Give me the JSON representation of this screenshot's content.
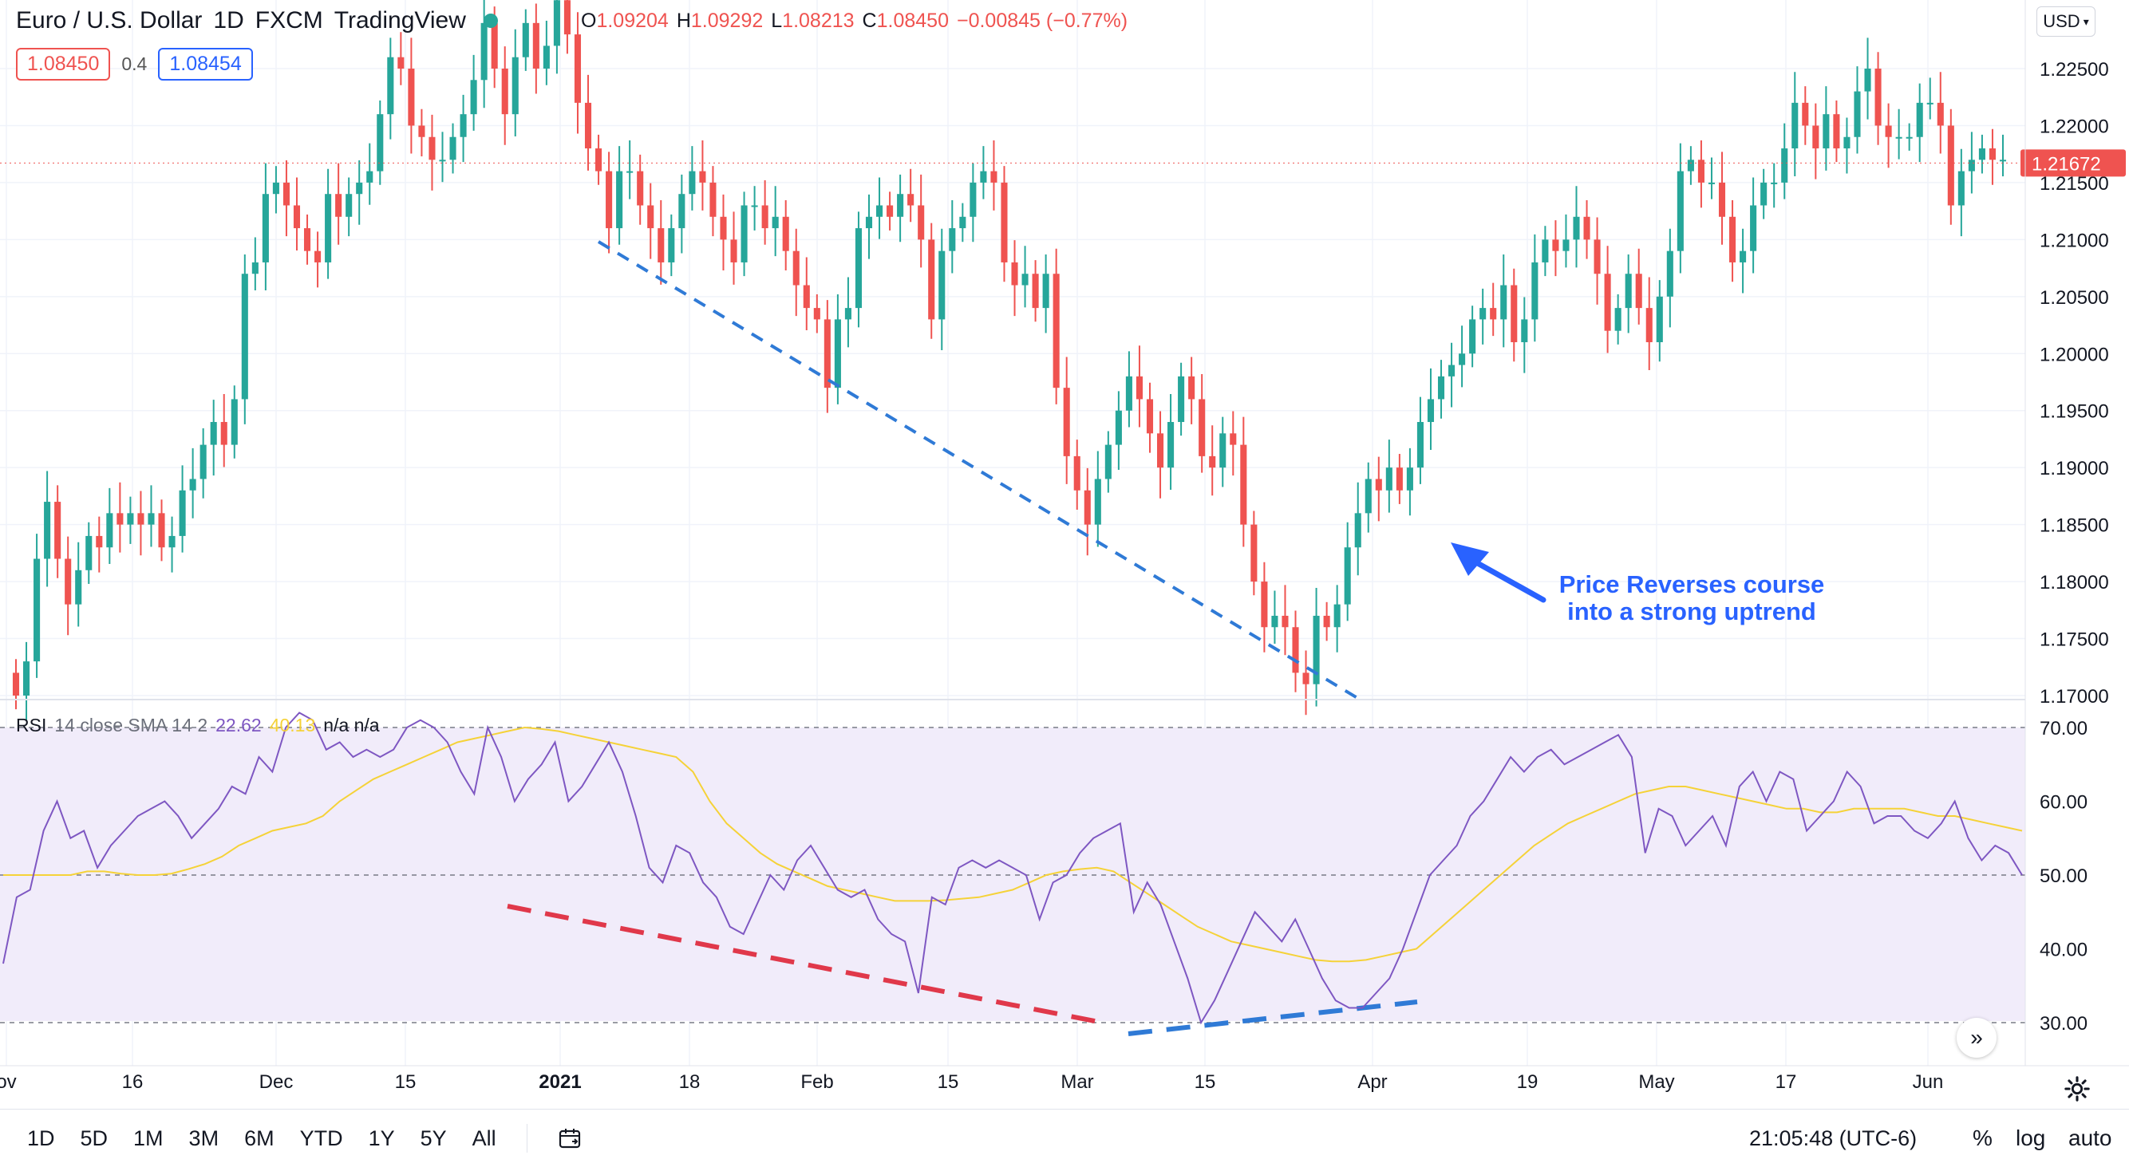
{
  "header": {
    "symbol": "Euro / U.S. Dollar",
    "interval": "1D",
    "exchange": "FXCM",
    "brand": "TradingView",
    "ohlc": {
      "open_label": "O",
      "open": "1.09204",
      "high_label": "H",
      "high": "1.09292",
      "low_label": "L",
      "low": "1.08213",
      "close_label": "C",
      "close": "1.08450",
      "change": "−0.00845 (−0.77%)"
    },
    "sell_price": "1.08450",
    "spread": "0.4",
    "buy_price": "1.08454",
    "currency": "USD"
  },
  "rsi_legend": {
    "name": "RSI",
    "params": "14 close SMA 14 2",
    "rsi_value": "22.62",
    "ma_value": "40.13",
    "extra": "n/a n/a"
  },
  "annotation": {
    "line1": "Price Reverses course",
    "line2": "into a strong uptrend"
  },
  "bottom_bar": {
    "timeframes": [
      "1D",
      "5D",
      "1M",
      "3M",
      "6M",
      "YTD",
      "1Y",
      "5Y",
      "All"
    ],
    "clock": "21:05:48 (UTC-6)",
    "percent_label": "%",
    "log_label": "log",
    "auto_label": "auto"
  },
  "colors": {
    "up": "#26a69a",
    "down": "#ef5350",
    "rsi_line": "#7e57c2",
    "rsi_ma": "#f5d238",
    "trend_blue": "#2f7ad6",
    "div_red": "#e0384a",
    "annotation": "#2962ff",
    "rsi_band": "#f1ecfa"
  },
  "chart_data": [
    {
      "type": "candlestick",
      "title": "Euro / U.S. Dollar · 1D · FXCM",
      "x_ticks": [
        "ov",
        "16",
        "Dec",
        "15",
        "2021",
        "18",
        "Feb",
        "15",
        "Mar",
        "15",
        "Apr",
        "19",
        "May",
        "17",
        "Jun"
      ],
      "ylim": [
        1.17,
        1.228
      ],
      "y_ticks": [
        "1.17000",
        "1.17500",
        "1.18000",
        "1.18500",
        "1.19000",
        "1.19500",
        "1.20000",
        "1.20500",
        "1.21000",
        "1.21500",
        "1.22000",
        "1.22500"
      ],
      "last_price_label": "1.21672",
      "last_price": 1.21672,
      "closes": [
        1.17,
        1.173,
        1.182,
        1.187,
        1.182,
        1.178,
        1.181,
        1.184,
        1.183,
        1.186,
        1.185,
        1.186,
        1.185,
        1.186,
        1.183,
        1.184,
        1.188,
        1.189,
        1.192,
        1.194,
        1.192,
        1.196,
        1.207,
        1.208,
        1.214,
        1.215,
        1.213,
        1.211,
        1.209,
        1.208,
        1.214,
        1.212,
        1.214,
        1.215,
        1.216,
        1.221,
        1.226,
        1.225,
        1.22,
        1.219,
        1.217,
        1.217,
        1.219,
        1.221,
        1.224,
        1.229,
        1.225,
        1.221,
        1.226,
        1.229,
        1.225,
        1.227,
        1.231,
        1.228,
        1.222,
        1.218,
        1.216,
        1.211,
        1.216,
        1.216,
        1.213,
        1.211,
        1.208,
        1.211,
        1.214,
        1.216,
        1.215,
        1.212,
        1.21,
        1.208,
        1.213,
        1.213,
        1.211,
        1.212,
        1.209,
        1.206,
        1.204,
        1.203,
        1.197,
        1.203,
        1.204,
        1.211,
        1.212,
        1.213,
        1.212,
        1.214,
        1.213,
        1.21,
        1.203,
        1.209,
        1.211,
        1.212,
        1.215,
        1.216,
        1.215,
        1.208,
        1.206,
        1.207,
        1.204,
        1.207,
        1.197,
        1.191,
        1.188,
        1.185,
        1.189,
        1.192,
        1.195,
        1.198,
        1.196,
        1.193,
        1.19,
        1.194,
        1.198,
        1.196,
        1.191,
        1.19,
        1.193,
        1.192,
        1.185,
        1.18,
        1.176,
        1.177,
        1.176,
        1.172,
        1.171,
        1.177,
        1.176,
        1.178,
        1.183,
        1.186,
        1.189,
        1.188,
        1.19,
        1.188,
        1.19,
        1.194,
        1.196,
        1.198,
        1.199,
        1.2,
        1.203,
        1.204,
        1.203,
        1.206,
        1.201,
        1.203,
        1.208,
        1.21,
        1.209,
        1.21,
        1.212,
        1.21,
        1.207,
        1.202,
        1.204,
        1.207,
        1.204,
        1.201,
        1.205,
        1.209,
        1.216,
        1.217,
        1.215,
        1.215,
        1.212,
        1.208,
        1.209,
        1.213,
        1.215,
        1.215,
        1.218,
        1.222,
        1.22,
        1.218,
        1.221,
        1.218,
        1.219,
        1.223,
        1.225,
        1.22,
        1.219,
        1.219,
        1.219,
        1.222,
        1.222,
        1.22,
        1.213,
        1.216,
        1.217,
        1.218,
        1.217,
        1.217
      ],
      "trendline": {
        "from": [
          "Jan 7",
          1.21
        ],
        "to": [
          "Mar 31",
          1.17
        ],
        "style": "dashed"
      }
    },
    {
      "type": "line",
      "title": "RSI 14 close SMA 14 2",
      "ylim": [
        25,
        72
      ],
      "y_ticks": [
        "30.00",
        "40.00",
        "50.00",
        "60.00",
        "70.00"
      ],
      "levels": [
        30,
        50,
        70
      ],
      "series": [
        {
          "name": "RSI",
          "values": [
            38,
            47,
            48,
            56,
            60,
            55,
            56,
            51,
            54,
            56,
            58,
            59,
            60,
            58,
            55,
            57,
            59,
            62,
            61,
            66,
            64,
            70,
            72,
            71,
            67,
            68,
            66,
            67,
            66,
            67,
            70,
            71,
            70,
            68,
            64,
            61,
            70,
            66,
            60,
            63,
            65,
            68,
            60,
            62,
            65,
            68,
            64,
            58,
            51,
            49,
            54,
            53,
            49,
            47,
            43,
            42,
            46,
            50,
            48,
            52,
            54,
            51,
            48,
            47,
            48,
            44,
            42,
            41,
            34,
            47,
            46,
            51,
            52,
            51,
            52,
            51,
            50,
            44,
            49,
            50,
            53,
            55,
            56,
            57,
            45,
            49,
            46,
            41,
            36,
            30,
            33,
            37,
            41,
            45,
            43,
            41,
            44,
            40,
            36,
            33,
            32,
            32,
            34,
            36,
            40,
            45,
            50,
            52,
            54,
            58,
            60,
            63,
            66,
            64,
            66,
            67,
            65,
            66,
            67,
            68,
            69,
            66,
            53,
            59,
            58,
            54,
            56,
            58,
            54,
            62,
            64,
            60,
            64,
            63,
            56,
            58,
            60,
            64,
            62,
            57,
            58,
            58,
            56,
            55,
            57,
            60,
            55,
            52,
            54,
            53,
            50
          ]
        },
        {
          "name": "SMA",
          "values": [
            50,
            50,
            50,
            50,
            50,
            50.5,
            50.5,
            50.2,
            50,
            50,
            50.2,
            50.8,
            51.5,
            52.5,
            54,
            55,
            56,
            56.5,
            57,
            58,
            60,
            61.5,
            63,
            64,
            65,
            66,
            67,
            68,
            68.5,
            69,
            69.5,
            70,
            69.8,
            69.5,
            69,
            68.5,
            68,
            67.5,
            67,
            66.5,
            66,
            64,
            60,
            57,
            55,
            53,
            51.5,
            50.5,
            49.5,
            48.5,
            48,
            47.5,
            47,
            46.5,
            46.5,
            46.5,
            46.6,
            46.8,
            47,
            47.5,
            48,
            49,
            50,
            50.5,
            50.8,
            51,
            50.5,
            49,
            47.5,
            46,
            44.5,
            43,
            42,
            41,
            40.5,
            40,
            39.5,
            39,
            38.5,
            38.3,
            38.3,
            38.5,
            39,
            39.5,
            40,
            42,
            44,
            46,
            48,
            50,
            52,
            54,
            55.5,
            57,
            58,
            59,
            60,
            61,
            61.5,
            62,
            62,
            61.5,
            61,
            60.5,
            60,
            59.5,
            59,
            59,
            58.5,
            58.5,
            59,
            59,
            59,
            59,
            58.5,
            58,
            58,
            57.5,
            57,
            56.5,
            56
          ]
        }
      ]
    }
  ]
}
